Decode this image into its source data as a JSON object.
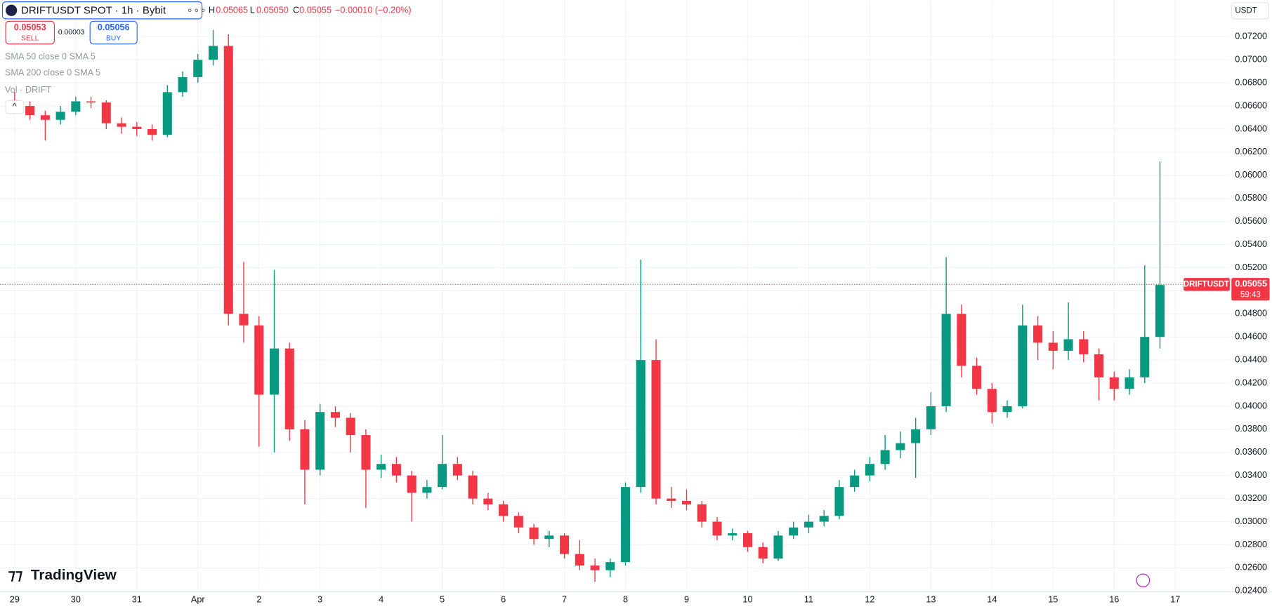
{
  "header": {
    "symbol": "DRIFTUSDT SPOT · 1h · Bybit",
    "h_label": "H",
    "high": "0.05065",
    "l_label": "L",
    "low": "0.05050",
    "c_label": "C",
    "close": "0.05055",
    "change": "−0.00010 (−0.20%)",
    "sell_price": "0.05053",
    "sell": "SELL",
    "spread": "0.00003",
    "buy_price": "0.05056",
    "buy": "BUY",
    "indicators": [
      "SMA 50 close 0 SMA 5",
      "SMA 200 close 0 SMA 5",
      "Vol · DRIFT"
    ],
    "currency": "USDT",
    "brand": "TradingView"
  },
  "chart_data": {
    "type": "candlestick",
    "up_color": "#089981",
    "down_color": "#f23645",
    "grid": true,
    "xlim": [
      -0.24,
      19.88
    ],
    "ylim": [
      0.02393,
      0.07516
    ],
    "xticks": [
      {
        "value": 0,
        "label": "29"
      },
      {
        "value": 1,
        "label": "30"
      },
      {
        "value": 2,
        "label": "31"
      },
      {
        "value": 3,
        "label": "Apr"
      },
      {
        "value": 4,
        "label": "2"
      },
      {
        "value": 5,
        "label": "3"
      },
      {
        "value": 6,
        "label": "4"
      },
      {
        "value": 7,
        "label": "5"
      },
      {
        "value": 8,
        "label": "6"
      },
      {
        "value": 9,
        "label": "7"
      },
      {
        "value": 10,
        "label": "8"
      },
      {
        "value": 11,
        "label": "9"
      },
      {
        "value": 12,
        "label": "10"
      },
      {
        "value": 13,
        "label": "11"
      },
      {
        "value": 14,
        "label": "12"
      },
      {
        "value": 15,
        "label": "13"
      },
      {
        "value": 16,
        "label": "14"
      },
      {
        "value": 17,
        "label": "15"
      },
      {
        "value": 18,
        "label": "16"
      },
      {
        "value": 19,
        "label": "17"
      }
    ],
    "yticks": [
      {
        "value": 0.024,
        "label": "0.02400"
      },
      {
        "value": 0.026,
        "label": "0.02600"
      },
      {
        "value": 0.028,
        "label": "0.02800"
      },
      {
        "value": 0.03,
        "label": "0.03000"
      },
      {
        "value": 0.032,
        "label": "0.03200"
      },
      {
        "value": 0.034,
        "label": "0.03400"
      },
      {
        "value": 0.036,
        "label": "0.03600"
      },
      {
        "value": 0.038,
        "label": "0.03800"
      },
      {
        "value": 0.04,
        "label": "0.04000"
      },
      {
        "value": 0.042,
        "label": "0.04200"
      },
      {
        "value": 0.044,
        "label": "0.04400"
      },
      {
        "value": 0.046,
        "label": "0.04600"
      },
      {
        "value": 0.048,
        "label": "0.04800"
      },
      {
        "value": 0.05,
        "label": "0.05000"
      },
      {
        "value": 0.052,
        "label": "0.05200"
      },
      {
        "value": 0.054,
        "label": "0.05400"
      },
      {
        "value": 0.056,
        "label": "0.05600"
      },
      {
        "value": 0.058,
        "label": "0.05800"
      },
      {
        "value": 0.06,
        "label": "0.06000"
      },
      {
        "value": 0.062,
        "label": "0.06200"
      },
      {
        "value": 0.064,
        "label": "0.06400"
      },
      {
        "value": 0.066,
        "label": "0.06600"
      },
      {
        "value": 0.068,
        "label": "0.06800"
      },
      {
        "value": 0.07,
        "label": "0.07000"
      },
      {
        "value": 0.072,
        "label": "0.07200"
      }
    ],
    "x": [
      0,
      0.25,
      0.5,
      0.75,
      1,
      1.25,
      1.5,
      1.75,
      2,
      2.25,
      2.5,
      2.75,
      3,
      3.25,
      3.5,
      3.75,
      4,
      4.25,
      4.5,
      4.75,
      5,
      5.25,
      5.5,
      5.75,
      6,
      6.25,
      6.5,
      6.75,
      7,
      7.25,
      7.5,
      7.75,
      8,
      8.25,
      8.5,
      8.75,
      9,
      9.25,
      9.5,
      9.75,
      10,
      10.25,
      10.5,
      10.75,
      11,
      11.25,
      11.5,
      11.75,
      12,
      12.25,
      12.5,
      12.75,
      13,
      13.25,
      13.5,
      13.75,
      14,
      14.25,
      14.5,
      14.75,
      15,
      15.25,
      15.5,
      15.75,
      16,
      16.25,
      16.5,
      16.75,
      17,
      17.25,
      17.5,
      17.75,
      18,
      18.25,
      18.5,
      18.75
    ],
    "candles": [
      [
        0.0665,
        0.0672,
        0.0655,
        0.066
      ],
      [
        0.066,
        0.0664,
        0.0648,
        0.0652
      ],
      [
        0.0652,
        0.0656,
        0.063,
        0.0648
      ],
      [
        0.0648,
        0.066,
        0.0644,
        0.0655
      ],
      [
        0.0655,
        0.0668,
        0.0652,
        0.0664
      ],
      [
        0.0664,
        0.0668,
        0.0658,
        0.0663
      ],
      [
        0.0663,
        0.0665,
        0.064,
        0.0645
      ],
      [
        0.0645,
        0.065,
        0.0636,
        0.0642
      ],
      [
        0.0642,
        0.0646,
        0.0634,
        0.064
      ],
      [
        0.064,
        0.0644,
        0.063,
        0.0635
      ],
      [
        0.0635,
        0.0678,
        0.0633,
        0.0672
      ],
      [
        0.0672,
        0.069,
        0.0668,
        0.0685
      ],
      [
        0.0685,
        0.0705,
        0.068,
        0.07
      ],
      [
        0.07,
        0.0726,
        0.0695,
        0.0712
      ],
      [
        0.0712,
        0.0722,
        0.047,
        0.048
      ],
      [
        0.048,
        0.0525,
        0.0455,
        0.047
      ],
      [
        0.047,
        0.0478,
        0.0365,
        0.041
      ],
      [
        0.041,
        0.0518,
        0.036,
        0.045
      ],
      [
        0.045,
        0.0455,
        0.037,
        0.038
      ],
      [
        0.038,
        0.0388,
        0.0315,
        0.0345
      ],
      [
        0.0345,
        0.0402,
        0.034,
        0.0395
      ],
      [
        0.0395,
        0.04,
        0.0382,
        0.039
      ],
      [
        0.039,
        0.0394,
        0.036,
        0.0375
      ],
      [
        0.0375,
        0.038,
        0.0312,
        0.0345
      ],
      [
        0.0345,
        0.0358,
        0.0338,
        0.035
      ],
      [
        0.035,
        0.0356,
        0.0334,
        0.034
      ],
      [
        0.034,
        0.0344,
        0.03,
        0.0325
      ],
      [
        0.0325,
        0.0336,
        0.032,
        0.033
      ],
      [
        0.033,
        0.0375,
        0.0328,
        0.035
      ],
      [
        0.035,
        0.0356,
        0.0336,
        0.034
      ],
      [
        0.034,
        0.0344,
        0.0315,
        0.032
      ],
      [
        0.032,
        0.0325,
        0.031,
        0.0315
      ],
      [
        0.0315,
        0.0318,
        0.03,
        0.0305
      ],
      [
        0.0305,
        0.0308,
        0.029,
        0.0295
      ],
      [
        0.0295,
        0.0298,
        0.028,
        0.0285
      ],
      [
        0.0285,
        0.0292,
        0.0278,
        0.0288
      ],
      [
        0.0288,
        0.029,
        0.0268,
        0.0272
      ],
      [
        0.0272,
        0.0284,
        0.0258,
        0.0262
      ],
      [
        0.0262,
        0.0268,
        0.0248,
        0.0258
      ],
      [
        0.0258,
        0.0268,
        0.0252,
        0.0265
      ],
      [
        0.0265,
        0.0334,
        0.0262,
        0.033
      ],
      [
        0.033,
        0.0527,
        0.0325,
        0.044
      ],
      [
        0.044,
        0.0458,
        0.0315,
        0.032
      ],
      [
        0.032,
        0.033,
        0.0312,
        0.0318
      ],
      [
        0.0318,
        0.0328,
        0.031,
        0.0315
      ],
      [
        0.0315,
        0.0318,
        0.0295,
        0.03
      ],
      [
        0.03,
        0.0304,
        0.0284,
        0.0288
      ],
      [
        0.0288,
        0.0294,
        0.0284,
        0.029
      ],
      [
        0.029,
        0.0292,
        0.0274,
        0.0278
      ],
      [
        0.0278,
        0.0282,
        0.0264,
        0.0268
      ],
      [
        0.0268,
        0.0292,
        0.0266,
        0.0288
      ],
      [
        0.0288,
        0.03,
        0.0285,
        0.0295
      ],
      [
        0.0295,
        0.0306,
        0.029,
        0.03
      ],
      [
        0.03,
        0.031,
        0.0296,
        0.0305
      ],
      [
        0.0305,
        0.0336,
        0.0302,
        0.033
      ],
      [
        0.033,
        0.0345,
        0.0326,
        0.034
      ],
      [
        0.034,
        0.0356,
        0.0335,
        0.035
      ],
      [
        0.035,
        0.0375,
        0.0345,
        0.0362
      ],
      [
        0.0362,
        0.0378,
        0.0355,
        0.0368
      ],
      [
        0.0368,
        0.039,
        0.0338,
        0.038
      ],
      [
        0.038,
        0.0412,
        0.0375,
        0.04
      ],
      [
        0.04,
        0.0529,
        0.0395,
        0.048
      ],
      [
        0.048,
        0.0488,
        0.0425,
        0.0435
      ],
      [
        0.0435,
        0.0442,
        0.041,
        0.0415
      ],
      [
        0.0415,
        0.042,
        0.0385,
        0.0395
      ],
      [
        0.0395,
        0.0405,
        0.039,
        0.04
      ],
      [
        0.04,
        0.0488,
        0.0398,
        0.047
      ],
      [
        0.047,
        0.0478,
        0.044,
        0.0455
      ],
      [
        0.0455,
        0.0465,
        0.0432,
        0.0448
      ],
      [
        0.0448,
        0.049,
        0.044,
        0.0458
      ],
      [
        0.0458,
        0.0465,
        0.0438,
        0.0445
      ],
      [
        0.0445,
        0.045,
        0.0405,
        0.0425
      ],
      [
        0.0425,
        0.043,
        0.0405,
        0.0415
      ],
      [
        0.0415,
        0.0432,
        0.041,
        0.0425
      ],
      [
        0.0425,
        0.0522,
        0.042,
        0.046
      ],
      [
        0.046,
        0.0612,
        0.045,
        0.0505
      ]
    ],
    "last_price": 0.05055,
    "last_price_label": "0.05055",
    "price_tag": "DRIFTUSDT",
    "countdown": "59:43"
  }
}
